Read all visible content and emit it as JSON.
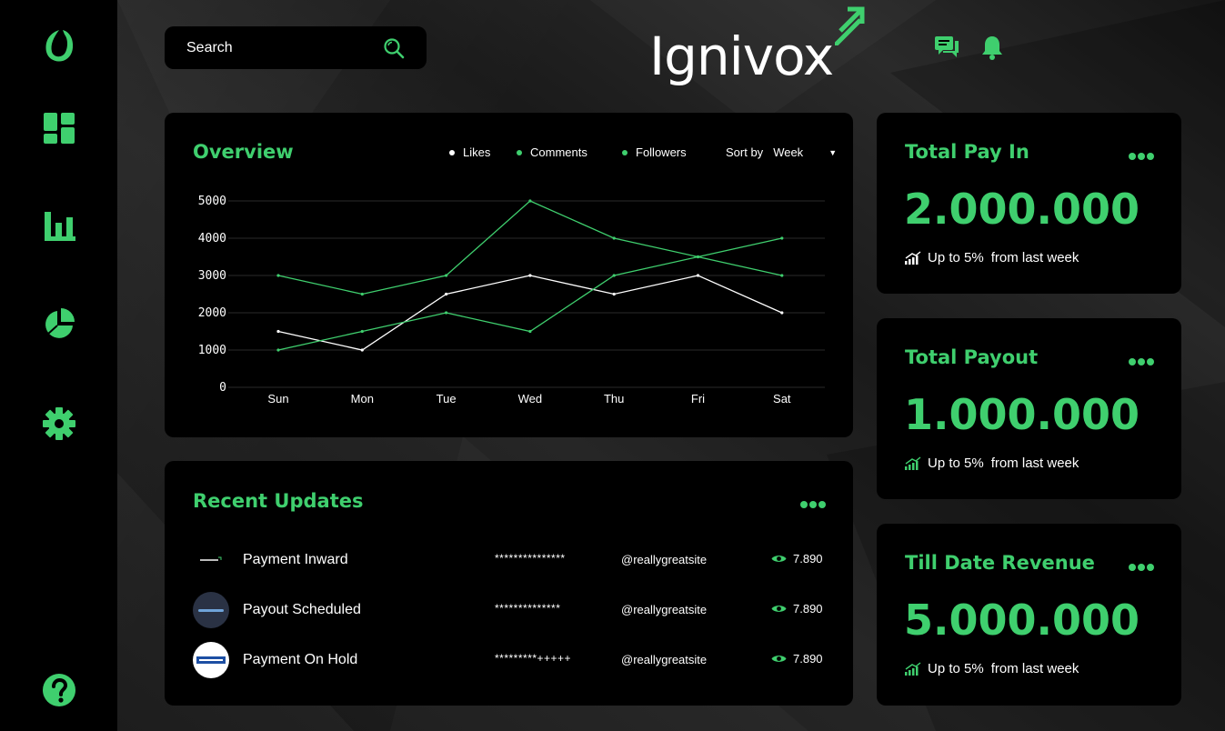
{
  "brand": {
    "name": "Ignivox",
    "accent": "#3fcf6e"
  },
  "sidebar": {
    "items": [
      {
        "icon": "brand-leaf-icon"
      },
      {
        "icon": "dashboard-icon"
      },
      {
        "icon": "bar-chart-icon"
      },
      {
        "icon": "pie-chart-icon"
      },
      {
        "icon": "gear-icon"
      },
      {
        "icon": "help-icon"
      }
    ]
  },
  "search": {
    "placeholder": "Search"
  },
  "header": {
    "icons": [
      "chat-icon",
      "bell-icon"
    ]
  },
  "overview": {
    "title": "Overview",
    "legend": [
      "Likes",
      "Comments",
      "Followers"
    ],
    "sort_label": "Sort by",
    "sort_value": "Week"
  },
  "chart_data": {
    "type": "line",
    "title": "Overview",
    "categories": [
      "Sun",
      "Mon",
      "Tue",
      "Wed",
      "Thu",
      "Fri",
      "Sat"
    ],
    "yticks": [
      "0",
      "1000",
      "2000",
      "3000",
      "4000",
      "5000"
    ],
    "ylim": [
      0,
      5000
    ],
    "grid": true,
    "legend_position": "top-right",
    "series": [
      {
        "name": "Likes",
        "color": "#ffffff",
        "values": [
          1500,
          1000,
          2500,
          3000,
          2500,
          3000,
          2000
        ]
      },
      {
        "name": "Comments",
        "color": "#3fcf6e",
        "values": [
          3000,
          2500,
          3000,
          5000,
          4000,
          3500,
          3000
        ]
      },
      {
        "name": "Followers",
        "color": "#3fcf6e",
        "values": [
          1000,
          1500,
          2000,
          1500,
          3000,
          3500,
          4000
        ]
      }
    ]
  },
  "updates": {
    "title": "Recent Updates",
    "rows": [
      {
        "logo": "ignivox",
        "title": "Payment Inward",
        "masked": "***************",
        "handle": "@reallygreatsite",
        "views": "7.890"
      },
      {
        "logo": "volpay",
        "title": "Payout Scheduled",
        "masked": "**************",
        "handle": "@reallygreatsite",
        "views": "7.890"
      },
      {
        "logo": "BESCO",
        "title": "Payment On Hold",
        "masked": "*********+++++",
        "handle": "@reallygreatsite",
        "views": "7.890"
      }
    ]
  },
  "stats": [
    {
      "title": "Total Pay In",
      "value": "2.000.000",
      "change": "Up to 5%",
      "period": "from last week"
    },
    {
      "title": "Total Payout",
      "value": "1.000.000",
      "change": "Up to 5%",
      "period": "from last week"
    },
    {
      "title": "Till Date Revenue",
      "value": "5.000.000",
      "change": "Up to 5%",
      "period": "from last week"
    }
  ]
}
